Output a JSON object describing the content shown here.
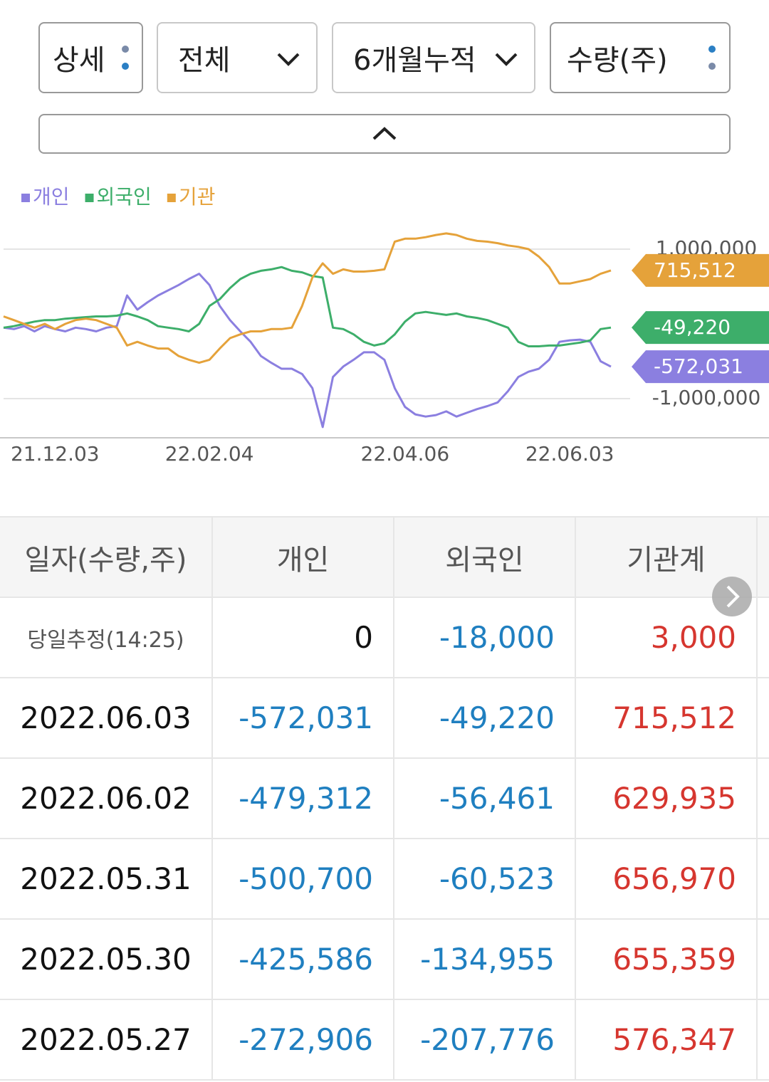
{
  "controls": {
    "detail": "상세",
    "scope": "전체",
    "period": "6개월누적",
    "unit": "수량(주)"
  },
  "chart_data": {
    "type": "line",
    "categories": [
      null,
      null,
      null,
      null,
      null,
      "21.12.03",
      null,
      null,
      null,
      null,
      null,
      null,
      null,
      null,
      null,
      null,
      null,
      null,
      null,
      null,
      "22.02.04",
      null,
      null,
      null,
      null,
      null,
      null,
      null,
      null,
      null,
      null,
      null,
      null,
      null,
      null,
      null,
      null,
      null,
      null,
      "22.04.06",
      null,
      null,
      null,
      null,
      null,
      null,
      null,
      null,
      null,
      null,
      null,
      null,
      null,
      null,
      null,
      "22.06.03",
      null,
      null,
      null,
      null
    ],
    "series": [
      {
        "name": "개인",
        "color": "#8b7fe0",
        "end_label": "-572,031",
        "values": [
          -50000,
          -70000,
          -30000,
          -100000,
          -30000,
          -70000,
          -100000,
          -50000,
          -70000,
          -100000,
          -50000,
          -30000,
          380000,
          190000,
          290000,
          380000,
          450000,
          520000,
          600000,
          670000,
          520000,
          240000,
          50000,
          -100000,
          -240000,
          -430000,
          -520000,
          -600000,
          -600000,
          -670000,
          -860000,
          -1380000,
          -710000,
          -570000,
          -480000,
          -380000,
          -380000,
          -480000,
          -860000,
          -1110000,
          -1210000,
          -1240000,
          -1220000,
          -1170000,
          -1240000,
          -1190000,
          -1140000,
          -1100000,
          -1050000,
          -900000,
          -710000,
          -640000,
          -600000,
          -480000,
          -240000,
          -220000,
          -210000,
          -240000,
          -500000,
          -572031
        ]
      },
      {
        "name": "외국인",
        "color": "#3dae6a",
        "end_label": "-49,220",
        "values": [
          -50000,
          -30000,
          0,
          30000,
          50000,
          50000,
          70000,
          80000,
          90000,
          100000,
          100000,
          110000,
          140000,
          100000,
          50000,
          -30000,
          -50000,
          -70000,
          -100000,
          0,
          240000,
          330000,
          480000,
          600000,
          670000,
          710000,
          730000,
          760000,
          710000,
          690000,
          640000,
          620000,
          -50000,
          -70000,
          -140000,
          -240000,
          -290000,
          -260000,
          -140000,
          30000,
          140000,
          160000,
          140000,
          120000,
          140000,
          100000,
          80000,
          50000,
          0,
          -50000,
          -240000,
          -300000,
          -300000,
          -290000,
          -290000,
          -270000,
          -250000,
          -220000,
          -70000,
          -49220
        ]
      },
      {
        "name": "기관",
        "color": "#e5a23a",
        "end_label": "715,512",
        "values": [
          100000,
          50000,
          0,
          -50000,
          0,
          -70000,
          0,
          50000,
          70000,
          50000,
          0,
          -50000,
          -290000,
          -240000,
          -290000,
          -330000,
          -330000,
          -430000,
          -480000,
          -520000,
          -480000,
          -330000,
          -190000,
          -140000,
          -100000,
          -100000,
          -70000,
          -70000,
          -50000,
          240000,
          620000,
          810000,
          670000,
          730000,
          700000,
          700000,
          710000,
          730000,
          1100000,
          1140000,
          1140000,
          1160000,
          1190000,
          1210000,
          1190000,
          1140000,
          1110000,
          1100000,
          1080000,
          1050000,
          1030000,
          1000000,
          900000,
          760000,
          540000,
          540000,
          570000,
          600000,
          670000,
          715512
        ]
      }
    ],
    "ylim": [
      -1500000,
      1500000
    ],
    "yticks": [
      {
        "value": 1000000,
        "label": "1,000,000"
      },
      {
        "value": -1000000,
        "label": "-1,000,000"
      }
    ],
    "grid": true
  },
  "table": {
    "headers": [
      "일자(수량,주)",
      "개인",
      "외국인",
      "기관계"
    ],
    "rows": [
      [
        "당일추정(14:25)",
        "0",
        "-18,000",
        "3,000"
      ],
      [
        "2022.06.03",
        "-572,031",
        "-49,220",
        "715,512"
      ],
      [
        "2022.06.02",
        "-479,312",
        "-56,461",
        "629,935"
      ],
      [
        "2022.05.31",
        "-500,700",
        "-60,523",
        "656,970"
      ],
      [
        "2022.05.30",
        "-425,586",
        "-134,955",
        "655,359"
      ],
      [
        "2022.05.27",
        "-272,906",
        "-207,776",
        "576,347"
      ]
    ]
  }
}
